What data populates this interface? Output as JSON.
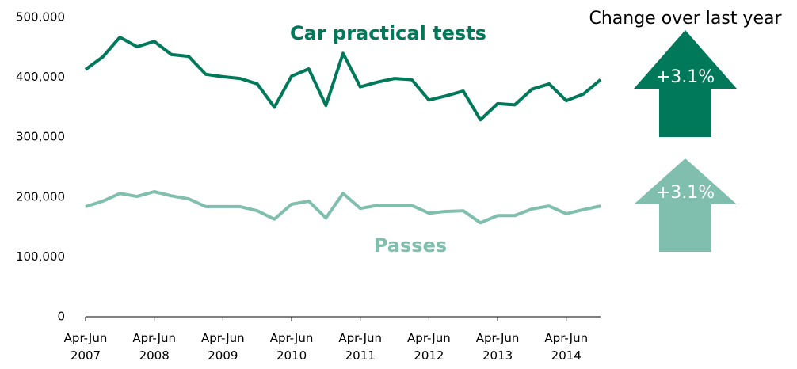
{
  "chart_data": {
    "type": "line",
    "categories": [
      "Apr-Jun 2007",
      null,
      null,
      null,
      "Apr-Jun 2008",
      null,
      null,
      null,
      "Apr-Jun 2009",
      null,
      null,
      null,
      "Apr-Jun 2010",
      null,
      null,
      null,
      "Apr-Jun 2011",
      null,
      null,
      null,
      "Apr-Jun 2012",
      null,
      null,
      null,
      "Apr-Jun 2013",
      null,
      null,
      null,
      "Apr-Jun 2014",
      null,
      null
    ],
    "series": [
      {
        "name": "Car practical tests",
        "color": "#00795a",
        "values": [
          413000,
          434000,
          467000,
          451000,
          460000,
          438000,
          435000,
          405000,
          401000,
          398000,
          389000,
          350000,
          402000,
          414000,
          353000,
          440000,
          384000,
          392000,
          398000,
          396000,
          362000,
          369000,
          377000,
          329000,
          356000,
          354000,
          380000,
          389000,
          361000,
          372000,
          396000
        ]
      },
      {
        "name": "Passes",
        "color": "#80bfae",
        "values": [
          184000,
          193000,
          206000,
          201000,
          209000,
          202000,
          197000,
          184000,
          184000,
          184000,
          177000,
          163000,
          188000,
          193000,
          165000,
          206000,
          181000,
          186000,
          186000,
          186000,
          173000,
          176000,
          177000,
          157000,
          169000,
          169000,
          180000,
          185000,
          172000,
          179000,
          185000
        ]
      }
    ],
    "ylim": [
      0,
      500000
    ],
    "yticks": [
      0,
      {
        "value": 100000,
        "label": "100,000"
      },
      {
        "value": 200000,
        "label": "200,000"
      },
      {
        "value": 300000,
        "label": "300,000"
      },
      {
        "value": 400000,
        "label": "400,000"
      },
      {
        "value": 500000,
        "label": "500,000"
      }
    ],
    "grid": false,
    "annotations": {
      "title": "Change over last year",
      "changes": [
        {
          "label": "+3.1%",
          "color": "#00795a"
        },
        {
          "label": "+3.1%",
          "color": "#80bfae"
        }
      ]
    }
  }
}
